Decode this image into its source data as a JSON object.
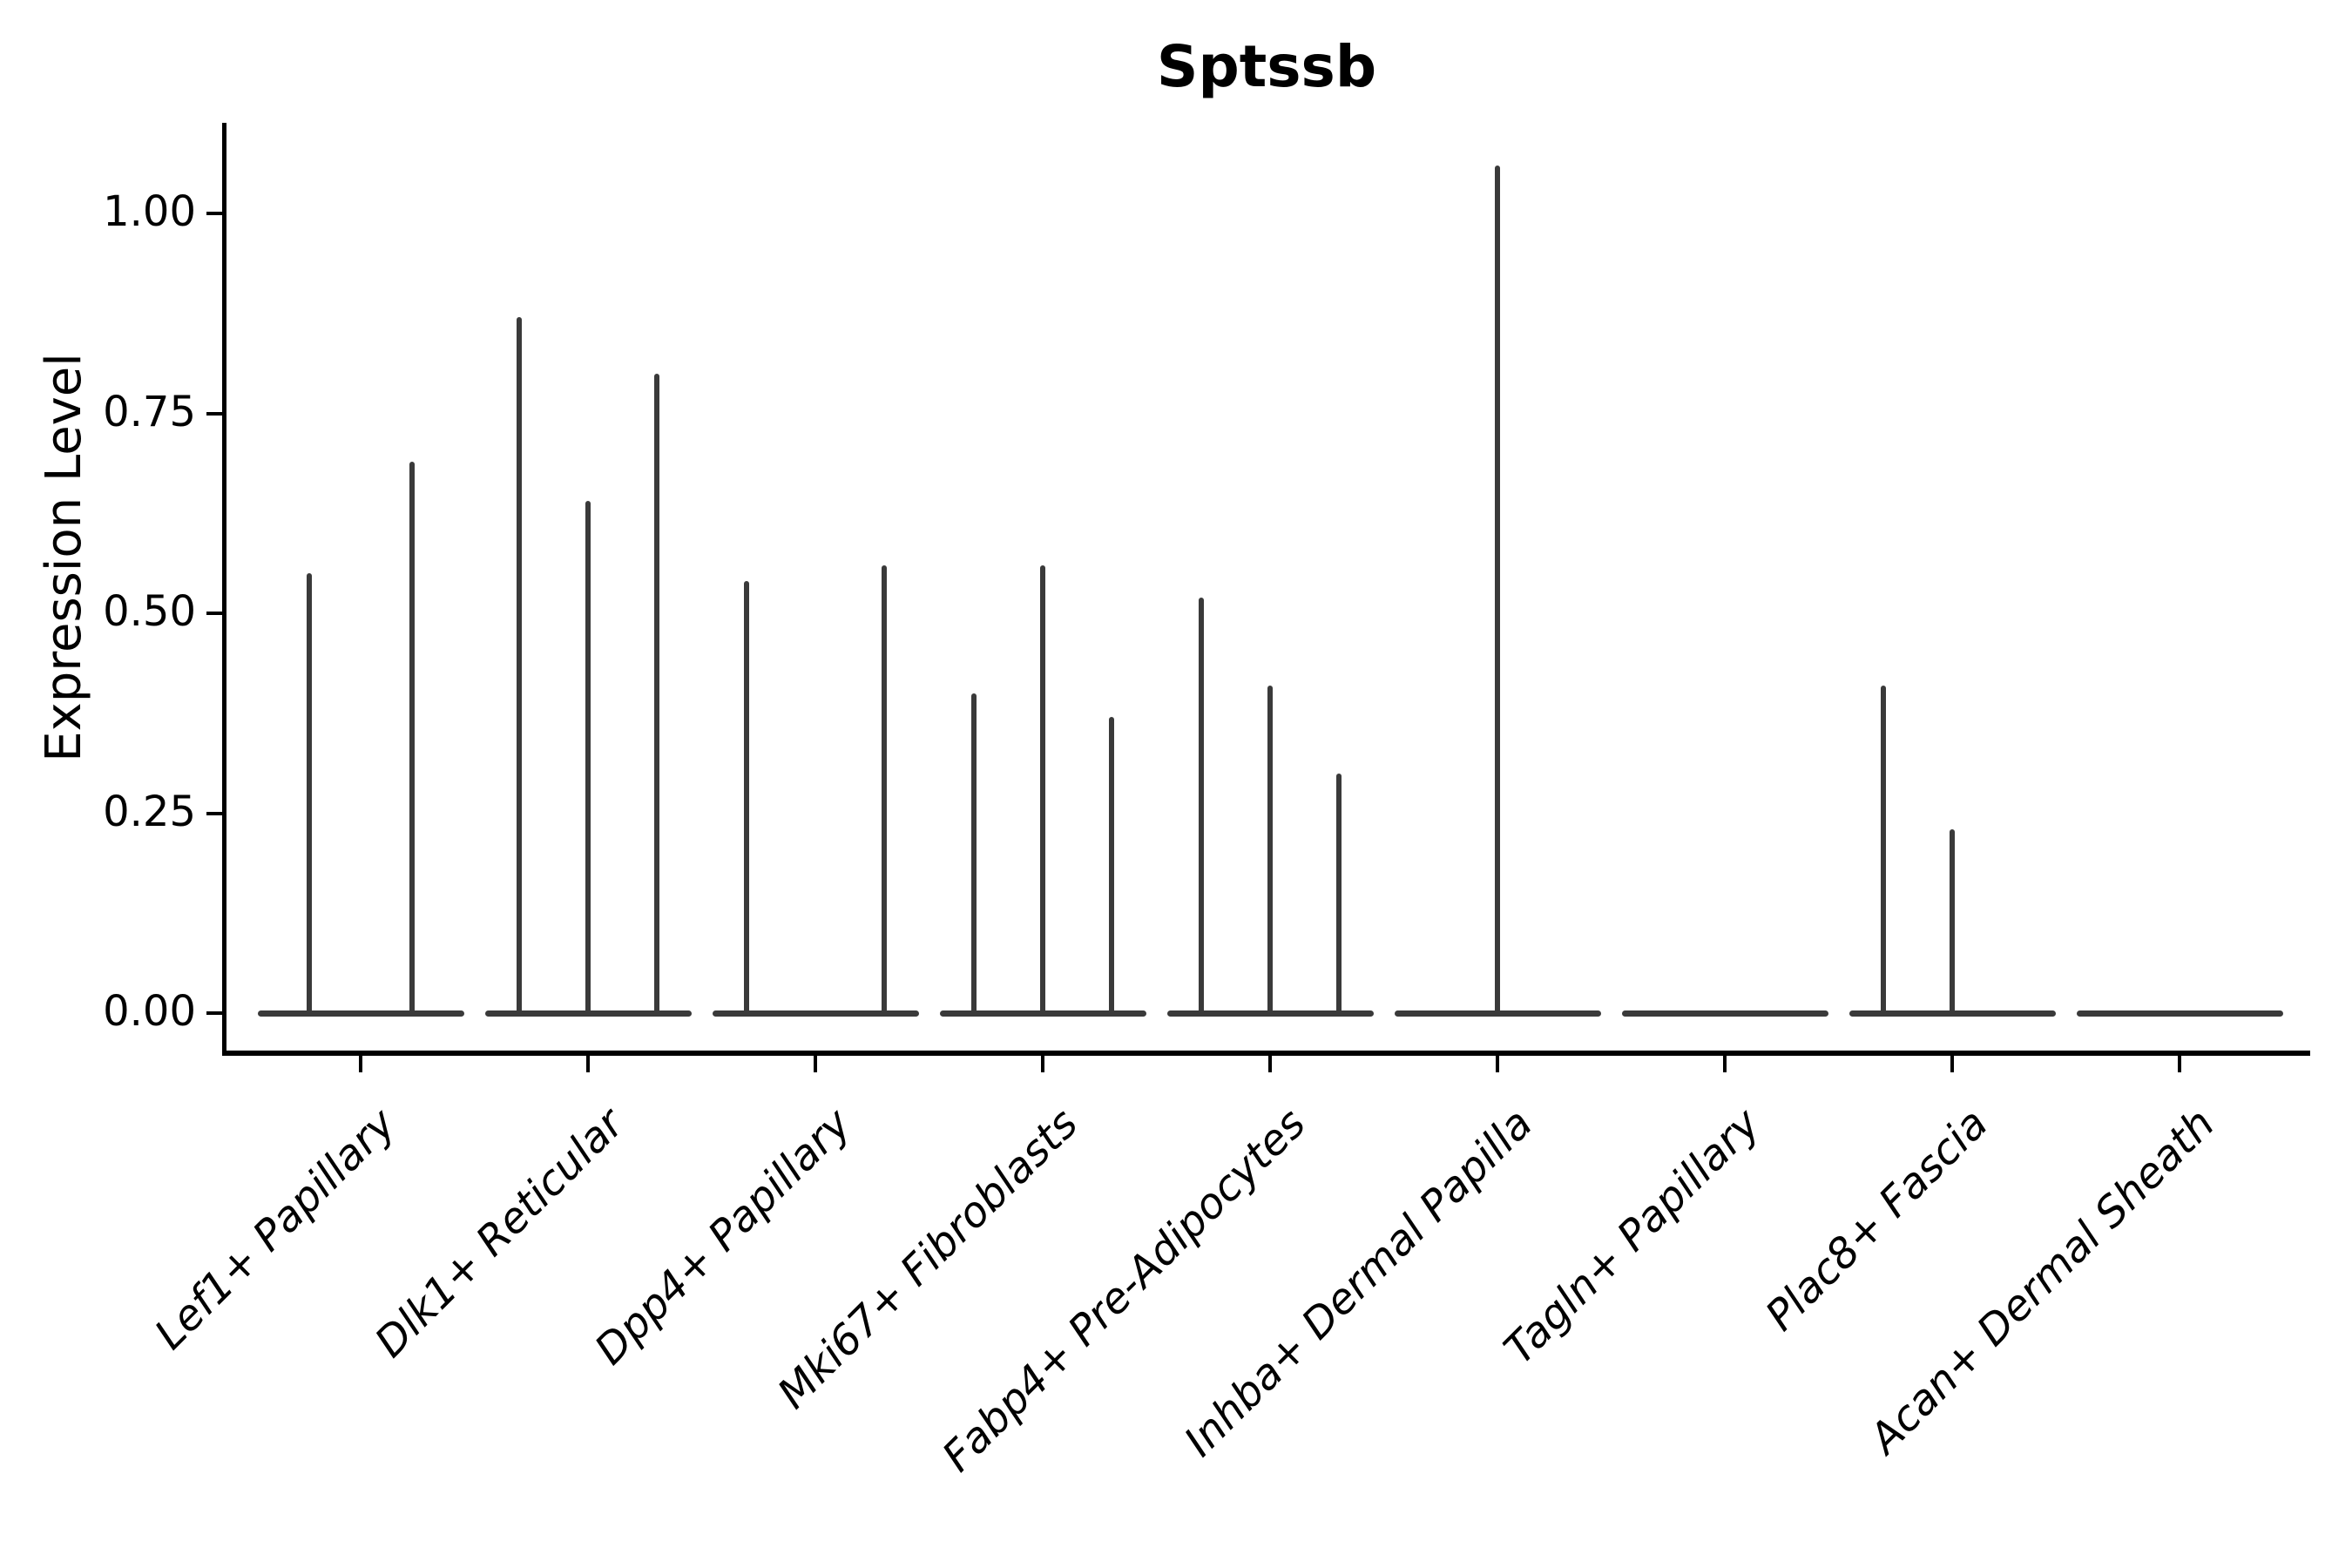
{
  "chart_data": {
    "type": "violin",
    "title": "Sptssb",
    "ylabel": "Expression Level",
    "xlabel": "",
    "ylim": [
      0,
      1.117
    ],
    "yticks": [
      {
        "value": 0.0,
        "label": "0.00"
      },
      {
        "value": 0.25,
        "label": "0.25"
      },
      {
        "value": 0.5,
        "label": "0.50"
      },
      {
        "value": 0.75,
        "label": "0.75"
      },
      {
        "value": 1.0,
        "label": "1.00"
      }
    ],
    "grid": false,
    "legend": "none",
    "style_note": "Seurat/ggplot-style stacked violin: each category shows dodged thin violins collapsed at 0 with a wide flat base; value is the max expression (spike tip height); 0 means fully flat violin (no spike)",
    "categories": [
      {
        "label": "Lef1+ Papillary",
        "violin_max_values": [
          0.55,
          0.69
        ]
      },
      {
        "label": "Dlk1+ Reticular",
        "violin_max_values": [
          0.87,
          0.64,
          0.8
        ]
      },
      {
        "label": "Dpp4+ Papillary",
        "violin_max_values": [
          0.54,
          0,
          0.56
        ]
      },
      {
        "label": "Mki67+ Fibroblasts",
        "violin_max_values": [
          0.4,
          0.56,
          0.37
        ]
      },
      {
        "label": "Fabp4+ Pre-Adipocytes",
        "violin_max_values": [
          0.52,
          0.41,
          0.3
        ]
      },
      {
        "label": "Inhba+ Dermal Papilla",
        "violin_max_values": [
          1.06
        ]
      },
      {
        "label": "Tagln+ Papillary",
        "violin_max_values": [
          0
        ]
      },
      {
        "label": "Plac8+ Fascia",
        "violin_max_values": [
          0.41,
          0.23,
          0
        ]
      },
      {
        "label": "Acan+ Dermal Sheath",
        "violin_max_values": [
          0
        ]
      }
    ],
    "colors": {
      "violin": "#3a3a3a",
      "axis": "#000000",
      "text": "#000000",
      "background": "#ffffff"
    }
  }
}
